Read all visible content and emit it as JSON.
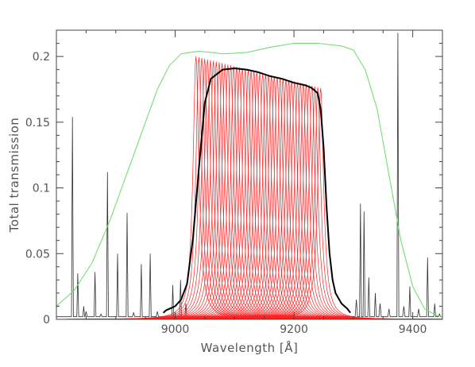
{
  "chart_data": {
    "type": "line",
    "xlabel": "Wavelength [Å]",
    "ylabel": "Total transmission",
    "xlim": [
      8800,
      9450
    ],
    "ylim": [
      0,
      0.22
    ],
    "x_ticks": [
      {
        "value": 9000,
        "label": "9000"
      },
      {
        "value": 9200,
        "label": "9200"
      },
      {
        "value": 9400,
        "label": "9400"
      }
    ],
    "y_ticks": [
      {
        "value": 0,
        "label": "0"
      },
      {
        "value": 0.05,
        "label": "0.05"
      },
      {
        "value": 0.1,
        "label": "0.1"
      },
      {
        "value": 0.15,
        "label": "0.15"
      },
      {
        "value": 0.2,
        "label": "0.2"
      }
    ],
    "grid": false,
    "colors": {
      "envelope": "#66dd66",
      "combined": "#000000",
      "individual": "#ff2222",
      "sky": "#333333"
    },
    "green_envelope": {
      "x": [
        8800,
        8830,
        8860,
        8890,
        8910,
        8930,
        8950,
        8970,
        8990,
        9010,
        9040,
        9080,
        9120,
        9160,
        9200,
        9240,
        9280,
        9300,
        9320,
        9340,
        9360,
        9380,
        9400,
        9420,
        9440,
        9450
      ],
      "y": [
        0.01,
        0.022,
        0.043,
        0.075,
        0.1,
        0.125,
        0.15,
        0.175,
        0.193,
        0.202,
        0.204,
        0.202,
        0.203,
        0.207,
        0.21,
        0.21,
        0.208,
        0.205,
        0.19,
        0.16,
        0.11,
        0.06,
        0.025,
        0.008,
        0.003,
        0.002
      ]
    },
    "combined_profile": {
      "x": [
        8980,
        8985,
        8990,
        9000,
        9010,
        9020,
        9030,
        9040,
        9050,
        9060,
        9080,
        9100,
        9120,
        9140,
        9160,
        9180,
        9200,
        9220,
        9230,
        9240,
        9245,
        9250,
        9255,
        9260,
        9265,
        9270,
        9280,
        9290,
        9295
      ],
      "y": [
        0.005,
        0.007,
        0.008,
        0.01,
        0.015,
        0.027,
        0.062,
        0.115,
        0.165,
        0.183,
        0.19,
        0.191,
        0.19,
        0.188,
        0.185,
        0.183,
        0.18,
        0.178,
        0.176,
        0.172,
        0.16,
        0.13,
        0.085,
        0.05,
        0.03,
        0.02,
        0.012,
        0.008,
        0.005
      ]
    },
    "individual_filters": {
      "count": 44,
      "first_center": 9035,
      "last_center": 9245,
      "peak_start": 0.2,
      "peak_end": 0.176,
      "fwhm": 14
    },
    "sky_lines": {
      "x": [
        8827,
        8836,
        8846,
        8865,
        8886,
        8903,
        8919,
        8943,
        8958,
        8996,
        9009,
        9018,
        9312,
        9318,
        9326,
        9337,
        9375,
        9395,
        9425,
        9437
      ],
      "y": [
        0.154,
        0.035,
        0.01,
        0.036,
        0.112,
        0.05,
        0.081,
        0.042,
        0.05,
        0.026,
        0.03,
        0.012,
        0.088,
        0.082,
        0.032,
        0.02,
        0.218,
        0.025,
        0.047,
        0.012
      ]
    },
    "sky_continuum": 0.002
  }
}
